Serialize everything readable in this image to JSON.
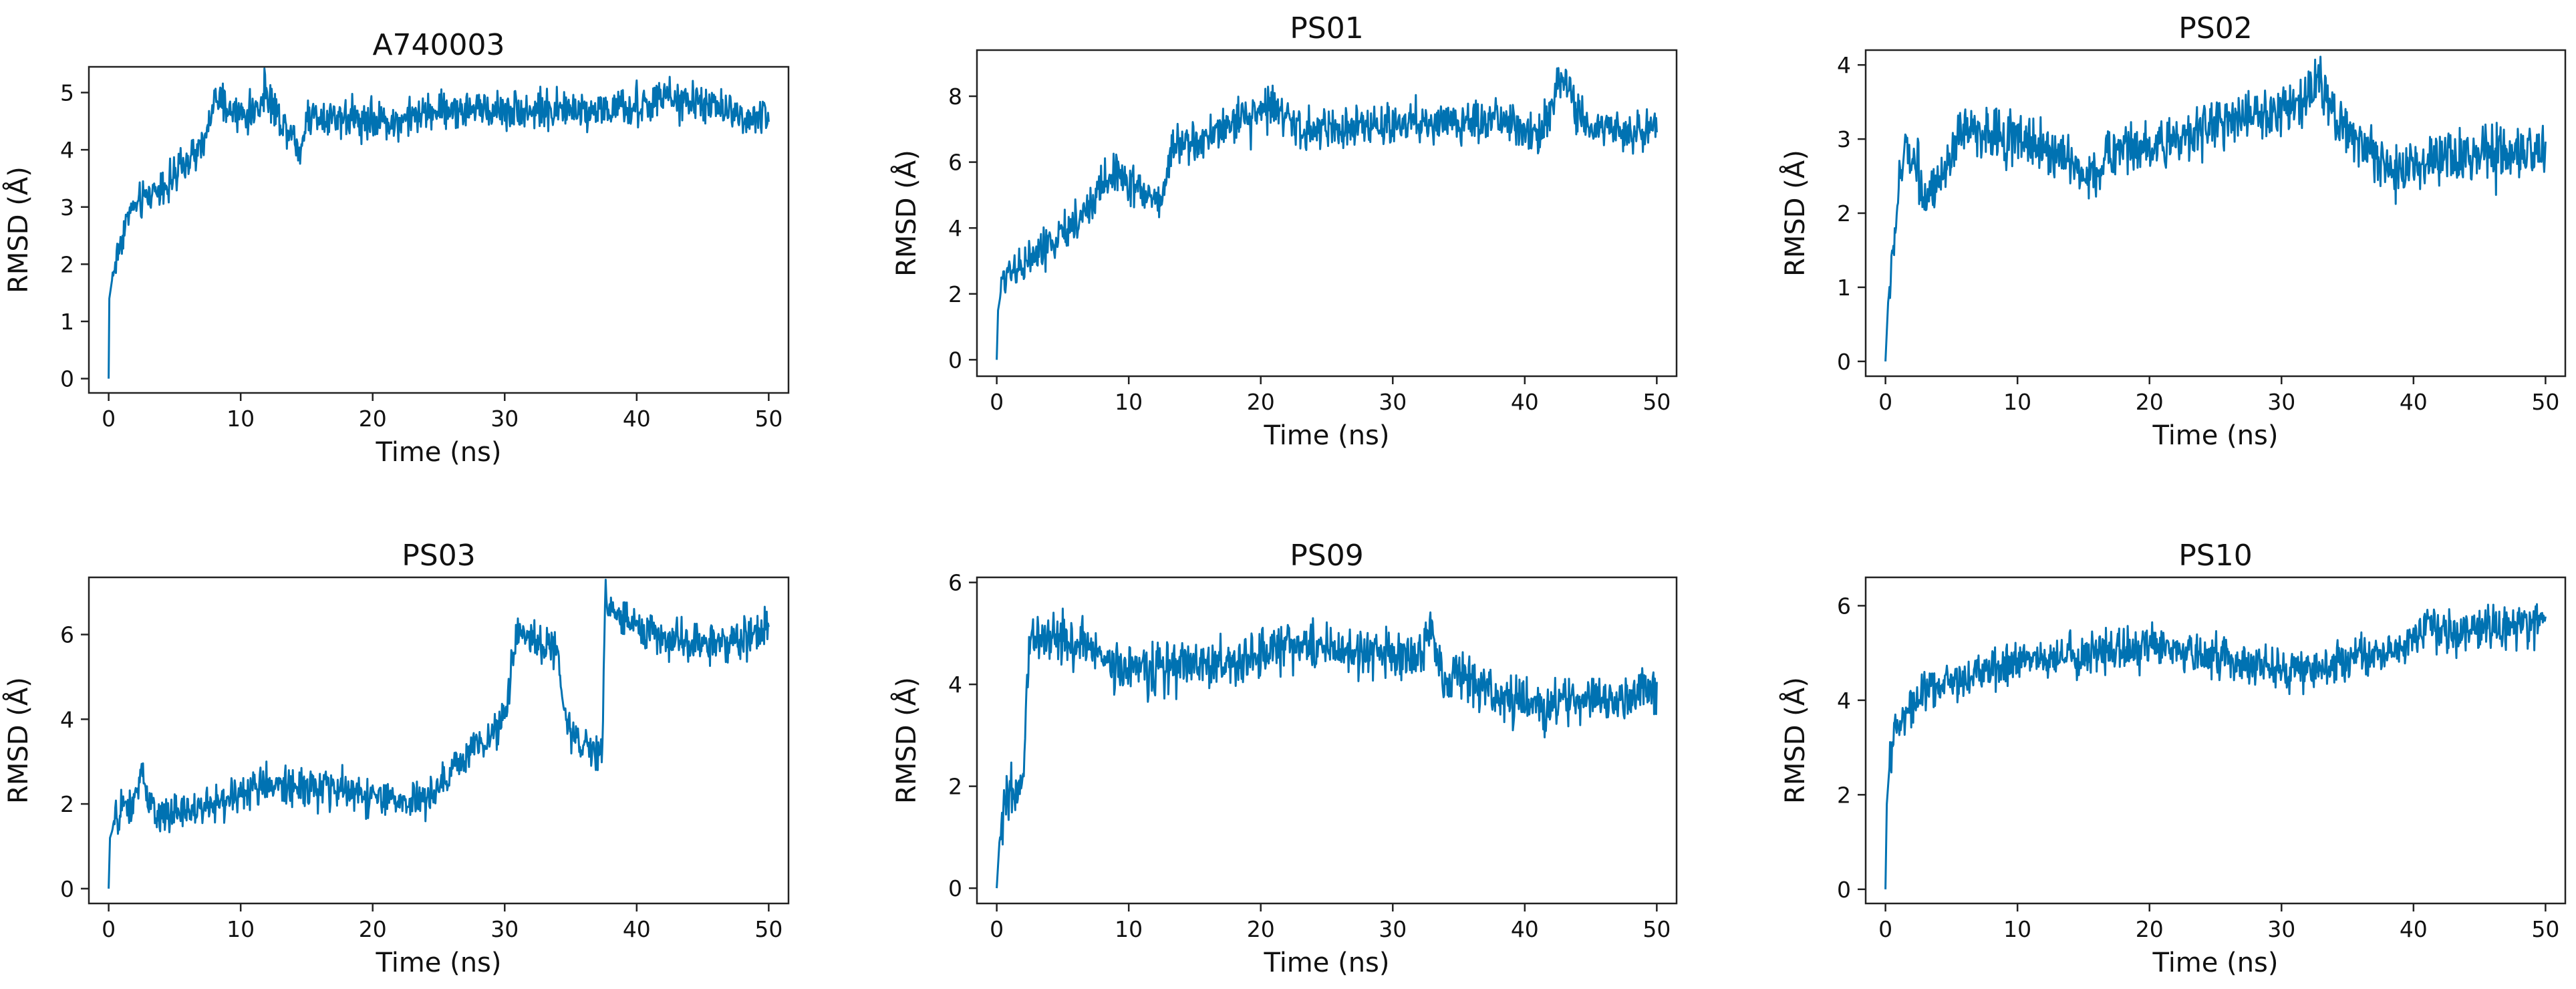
{
  "figure": {
    "series_color": "#0072B2",
    "shared_x_label": "Time (ns)",
    "shared_y_label": "RMSD (Å)"
  },
  "chart_data": [
    {
      "type": "line",
      "title": "A740003",
      "xlabel": "Time (ns)",
      "ylabel": "RMSD (Å)",
      "xlim": [
        -1.5,
        51.5
      ],
      "ylim": [
        -0.25,
        5.45
      ],
      "xticks": [
        0,
        10,
        20,
        30,
        40,
        50
      ],
      "yticks": [
        0,
        1,
        2,
        3,
        4,
        5
      ],
      "grid": false,
      "series": [
        {
          "name": "A740003",
          "noise": 0.16,
          "x": [
            0,
            0.05,
            0.3,
            0.8,
            1.5,
            2.5,
            3.5,
            5,
            6,
            7,
            7.5,
            8,
            9,
            10,
            11,
            12,
            12.5,
            13,
            14,
            14.5,
            15,
            17,
            20,
            22,
            25,
            30,
            35,
            40,
            42,
            45,
            48,
            50
          ],
          "y": [
            0,
            1.4,
            1.8,
            2.3,
            2.9,
            3.1,
            3.3,
            3.5,
            3.8,
            4.0,
            4.3,
            4.9,
            4.7,
            4.6,
            4.65,
            5.0,
            4.8,
            4.5,
            4.3,
            3.9,
            4.6,
            4.6,
            4.5,
            4.5,
            4.7,
            4.7,
            4.7,
            4.7,
            4.9,
            4.8,
            4.6,
            4.5
          ]
        }
      ]
    },
    {
      "type": "line",
      "title": "PS01",
      "xlabel": "Time (ns)",
      "ylabel": "RMSD (Å)",
      "xlim": [
        -1.5,
        51.5
      ],
      "ylim": [
        -0.5,
        9.4
      ],
      "xticks": [
        0,
        10,
        20,
        30,
        40,
        50
      ],
      "yticks": [
        0,
        2,
        4,
        6,
        8
      ],
      "grid": false,
      "series": [
        {
          "name": "PS01",
          "noise": 0.3,
          "x": [
            0,
            0.1,
            0.5,
            1,
            2,
            3,
            5,
            7,
            8,
            9,
            10,
            11,
            12,
            12.5,
            13,
            13.2,
            15,
            17,
            19,
            21,
            22,
            23,
            25,
            30,
            35,
            38,
            40,
            41,
            42,
            43,
            44,
            45,
            48,
            50
          ],
          "y": [
            0,
            1.5,
            2.5,
            2.8,
            2.9,
            3.2,
            3.8,
            4.6,
            5.3,
            5.8,
            5.4,
            5.1,
            4.9,
            4.8,
            5.6,
            6.5,
            6.6,
            7.0,
            7.4,
            7.8,
            7.3,
            6.9,
            7.0,
            7.2,
            7.2,
            7.3,
            7.0,
            6.8,
            7.8,
            8.6,
            7.4,
            7.0,
            7.0,
            7.0
          ]
        }
      ]
    },
    {
      "type": "line",
      "title": "PS02",
      "xlabel": "Time (ns)",
      "ylabel": "RMSD (Å)",
      "xlim": [
        -1.5,
        51.5
      ],
      "ylim": [
        -0.2,
        4.2
      ],
      "xticks": [
        0,
        10,
        20,
        30,
        40,
        50
      ],
      "yticks": [
        0,
        1,
        2,
        3,
        4
      ],
      "grid": false,
      "series": [
        {
          "name": "PS02",
          "noise": 0.17,
          "x": [
            0,
            0.2,
            0.6,
            1,
            1.5,
            2,
            2.5,
            3,
            4,
            5,
            5.5,
            7,
            10,
            12,
            14,
            15,
            16,
            18,
            20,
            22,
            25,
            28,
            30,
            32,
            33,
            34,
            35,
            36,
            37,
            38,
            40,
            45,
            50
          ],
          "y": [
            0,
            0.8,
            1.5,
            2.3,
            2.9,
            2.8,
            2.6,
            2.2,
            2.3,
            2.6,
            3.1,
            3.1,
            3.0,
            2.9,
            2.7,
            2.5,
            2.6,
            2.9,
            2.9,
            3.0,
            3.2,
            3.3,
            3.4,
            3.6,
            3.8,
            3.3,
            3.1,
            3.0,
            2.8,
            2.6,
            2.6,
            2.8,
            2.8
          ]
        }
      ]
    },
    {
      "type": "line",
      "title": "PS03",
      "xlabel": "Time (ns)",
      "ylabel": "RMSD (Å)",
      "xlim": [
        -1.5,
        51.5
      ],
      "ylim": [
        -0.35,
        7.35
      ],
      "xticks": [
        0,
        10,
        20,
        30,
        40,
        50
      ],
      "yticks": [
        0,
        2,
        4,
        6
      ],
      "grid": false,
      "series": [
        {
          "name": "PS03",
          "noise": 0.22,
          "x": [
            0,
            0.1,
            0.5,
            1,
            2,
            2.5,
            3,
            4,
            6,
            8,
            10,
            12,
            15,
            18,
            20,
            22,
            24,
            25,
            26,
            27,
            28,
            29,
            30,
            30.5,
            31,
            31.5,
            33,
            34,
            34.5,
            35,
            36,
            37,
            37.4,
            37.6,
            38,
            39,
            40,
            42,
            45,
            48,
            50
          ],
          "y": [
            0,
            1.2,
            1.6,
            1.8,
            2.1,
            2.7,
            2.0,
            1.7,
            1.8,
            2.0,
            2.2,
            2.5,
            2.4,
            2.3,
            2.2,
            2.0,
            2.1,
            2.3,
            2.8,
            3.2,
            3.4,
            3.7,
            4.0,
            5.0,
            6.1,
            5.9,
            5.8,
            5.6,
            4.2,
            3.7,
            3.4,
            3.2,
            3.1,
            6.8,
            6.7,
            6.4,
            6.2,
            5.9,
            5.8,
            5.9,
            6.2
          ]
        }
      ]
    },
    {
      "type": "line",
      "title": "PS09",
      "xlabel": "Time (ns)",
      "ylabel": "RMSD (Å)",
      "xlim": [
        -1.5,
        51.5
      ],
      "ylim": [
        -0.3,
        6.1
      ],
      "xticks": [
        0,
        10,
        20,
        30,
        40,
        50
      ],
      "yticks": [
        0,
        2,
        4,
        6
      ],
      "grid": false,
      "series": [
        {
          "name": "PS09",
          "noise": 0.24,
          "x": [
            0,
            0.2,
            0.5,
            1,
            1.5,
            2,
            2.2,
            2.5,
            3,
            5,
            8,
            10,
            12,
            15,
            18,
            20,
            22,
            25,
            28,
            30,
            32,
            33,
            33.5,
            34,
            35,
            37,
            40,
            42,
            45,
            48,
            50
          ],
          "y": [
            0,
            0.9,
            1.5,
            1.8,
            1.7,
            2.0,
            3.5,
            4.8,
            5.0,
            4.9,
            4.5,
            4.3,
            4.3,
            4.4,
            4.4,
            4.6,
            4.8,
            4.7,
            4.6,
            4.6,
            4.5,
            5.2,
            4.4,
            4.1,
            4.2,
            3.9,
            3.6,
            3.6,
            3.7,
            3.8,
            3.9
          ]
        }
      ]
    },
    {
      "type": "line",
      "title": "PS10",
      "xlabel": "Time (ns)",
      "ylabel": "RMSD (Å)",
      "xlim": [
        -1.5,
        51.5
      ],
      "ylim": [
        -0.3,
        6.6
      ],
      "xticks": [
        0,
        10,
        20,
        30,
        40,
        50
      ],
      "yticks": [
        0,
        2,
        4,
        6
      ],
      "grid": false,
      "series": [
        {
          "name": "PS10",
          "noise": 0.22,
          "x": [
            0,
            0.1,
            0.4,
            1,
            2,
            3,
            5,
            8,
            10,
            15,
            20,
            25,
            28,
            30,
            33,
            35,
            38,
            40,
            41,
            43,
            45,
            48,
            50
          ],
          "y": [
            0,
            1.8,
            3.0,
            3.4,
            3.9,
            4.2,
            4.4,
            4.7,
            4.8,
            5.0,
            5.1,
            4.9,
            4.7,
            4.6,
            4.7,
            4.8,
            5.0,
            5.3,
            5.6,
            5.4,
            5.5,
            5.6,
            5.7
          ]
        }
      ]
    }
  ]
}
